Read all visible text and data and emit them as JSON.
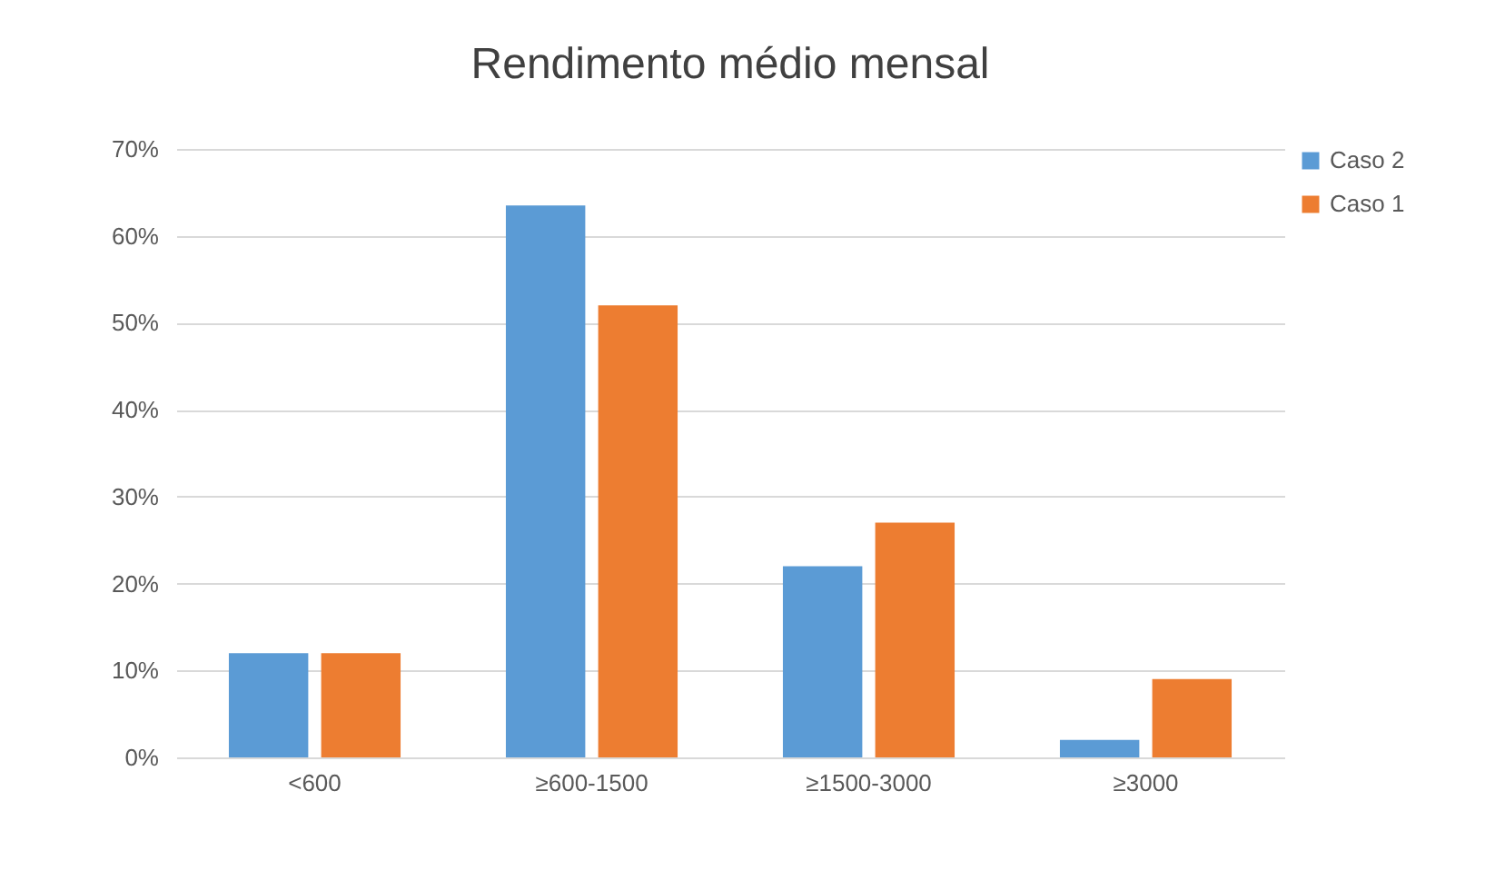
{
  "chart_data": {
    "type": "bar",
    "title": "Rendimento médio mensal",
    "categories": [
      "<600",
      "≥600-1500",
      "≥1500-3000",
      "≥3000"
    ],
    "series": [
      {
        "name": "Caso 2",
        "color": "#5b9bd5",
        "values": [
          12,
          63.5,
          22,
          2
        ]
      },
      {
        "name": "Caso 1",
        "color": "#ed7d31",
        "values": [
          12,
          52,
          27,
          9
        ]
      }
    ],
    "ylim": [
      0,
      70
    ],
    "yticks": [
      {
        "value": 0,
        "label": "0%"
      },
      {
        "value": 10,
        "label": "10%"
      },
      {
        "value": 20,
        "label": "20%"
      },
      {
        "value": 30,
        "label": "30%"
      },
      {
        "value": 40,
        "label": "40%"
      },
      {
        "value": 50,
        "label": "50%"
      },
      {
        "value": 60,
        "label": "60%"
      },
      {
        "value": 70,
        "label": "70%"
      }
    ],
    "grid": "y",
    "legend": "right"
  }
}
